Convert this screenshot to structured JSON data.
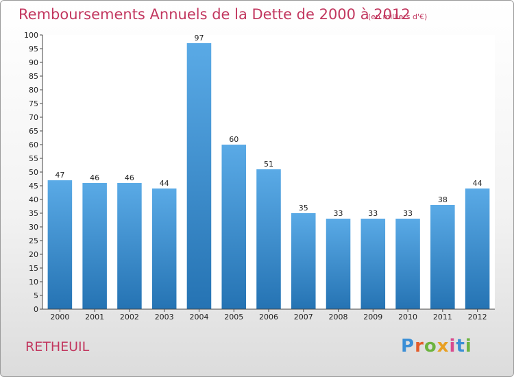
{
  "title": "Remboursements Annuels de la Dette de 2000 à 2012",
  "unit": "(en milliers d'€)",
  "location": "RETHEUIL",
  "logo": {
    "p": "P",
    "r": "r",
    "o": "o",
    "x": "x",
    "i1": "i",
    "t": "t",
    "i2": "i"
  },
  "colors": {
    "accent": "#c2375f",
    "bar_top": "#5aaae6",
    "bar_bottom": "#2573b3"
  },
  "chart_data": {
    "type": "bar",
    "title": "Remboursements Annuels de la Dette de 2000 à 2012",
    "categories": [
      "2000",
      "2001",
      "2002",
      "2003",
      "2004",
      "2005",
      "2006",
      "2007",
      "2008",
      "2009",
      "2010",
      "2011",
      "2012"
    ],
    "values": [
      47,
      46,
      46,
      44,
      97,
      60,
      51,
      35,
      33,
      33,
      33,
      38,
      44
    ],
    "ylim": [
      0,
      100
    ],
    "yticks": [
      0,
      5,
      10,
      15,
      20,
      25,
      30,
      35,
      40,
      45,
      50,
      55,
      60,
      65,
      70,
      75,
      80,
      85,
      90,
      95,
      100
    ],
    "grid": false,
    "legend": "none"
  }
}
